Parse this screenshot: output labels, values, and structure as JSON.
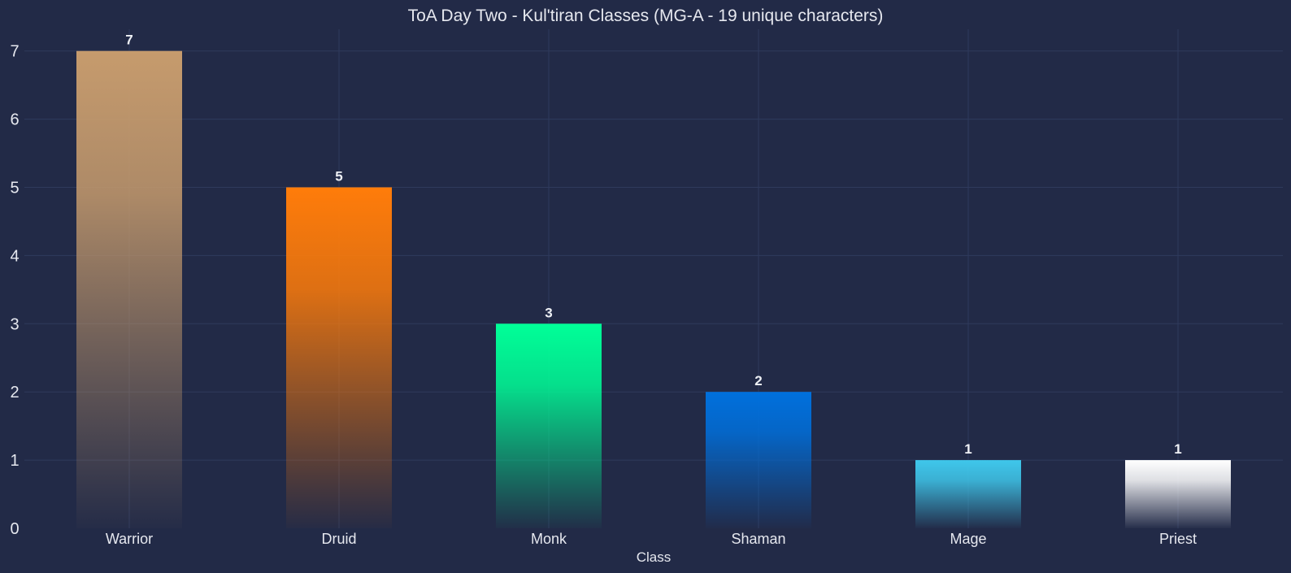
{
  "chart_data": {
    "type": "bar",
    "title": "ToA Day Two - Kul'tiran Classes (MG-A - 19 unique characters)",
    "xlabel": "Class",
    "ylabel": "",
    "categories": [
      "Warrior",
      "Druid",
      "Monk",
      "Shaman",
      "Mage",
      "Priest"
    ],
    "values": [
      7,
      5,
      3,
      2,
      1,
      1
    ],
    "data_labels": [
      "7",
      "5",
      "3",
      "2",
      "1",
      "1"
    ],
    "colors": [
      "#c69b6d",
      "#ff7c0a",
      "#00ff98",
      "#0070dd",
      "#3fc7eb",
      "#ffffff"
    ],
    "ylim": [
      0,
      7.3
    ],
    "yticks": [
      "0",
      "1",
      "2",
      "3",
      "4",
      "5",
      "6",
      "7"
    ],
    "grid": true,
    "gradient_fade_to": "#222a47",
    "background": "#222a47"
  }
}
